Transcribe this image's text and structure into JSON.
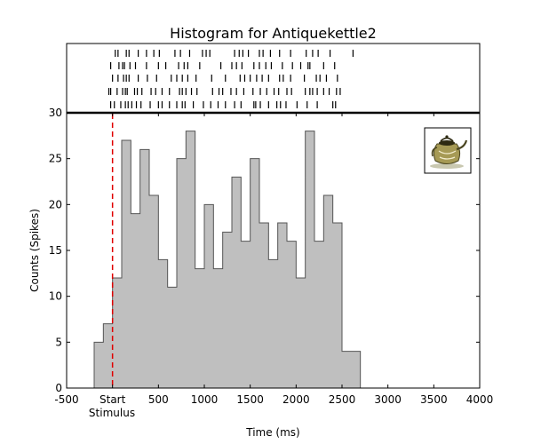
{
  "chart_data": {
    "type": "bar",
    "title": "Histogram for Antiquekettle2",
    "xlabel": "Time (ms)",
    "ylabel": "Counts (Spikes)",
    "xlim": [
      -500,
      4000
    ],
    "ylim": [
      0,
      30
    ],
    "bin_width": 100,
    "x_ticks": [
      -500,
      0,
      500,
      1000,
      1500,
      2000,
      2500,
      3000,
      3500,
      4000
    ],
    "x_tick_labels": [
      "-500",
      "Start",
      "500",
      "1000",
      "1500",
      "2000",
      "2500",
      "3000",
      "3500",
      "4000"
    ],
    "stimulus_label": "Stimulus",
    "stimulus_x": 0,
    "y_ticks": [
      0,
      5,
      10,
      15,
      20,
      25,
      30
    ],
    "bins": {
      "x": [
        -200,
        -100,
        0,
        100,
        200,
        300,
        400,
        500,
        600,
        700,
        800,
        900,
        1000,
        1100,
        1200,
        1300,
        1400,
        1500,
        1600,
        1700,
        1800,
        1900,
        2000,
        2100,
        2200,
        2300,
        2400,
        2500,
        2600
      ],
      "values": [
        5,
        7,
        12,
        27,
        19,
        26,
        21,
        14,
        11,
        25,
        28,
        13,
        20,
        13,
        17,
        23,
        16,
        25,
        18,
        14,
        18,
        16,
        12,
        28,
        16,
        21,
        18,
        4,
        4
      ]
    },
    "bar_color": "#bfbfbf",
    "bar_edge_color": "#555555",
    "stimulus_line_color": "#e00000",
    "raster": {
      "trials": [
        [
          30,
          60,
          150,
          180,
          280,
          370,
          450,
          510,
          680,
          740,
          840,
          980,
          1020,
          1060,
          1330,
          1380,
          1420,
          1480,
          1600,
          1640,
          1720,
          1820,
          1940,
          2110,
          2180,
          2240,
          2370,
          2620
        ],
        [
          -20,
          70,
          110,
          130,
          190,
          250,
          370,
          500,
          580,
          720,
          780,
          820,
          950,
          1180,
          1300,
          1350,
          1410,
          1540,
          1600,
          1670,
          1730,
          1850,
          1960,
          2050,
          2130,
          2150,
          2300,
          2420
        ],
        [
          0,
          60,
          120,
          150,
          180,
          280,
          380,
          480,
          640,
          700,
          760,
          820,
          910,
          1080,
          1230,
          1390,
          1440,
          1500,
          1570,
          1630,
          1700,
          1820,
          1860,
          1940,
          2090,
          2220,
          2260,
          2330,
          2450
        ],
        [
          -40,
          -20,
          50,
          110,
          140,
          160,
          240,
          270,
          320,
          420,
          470,
          540,
          620,
          730,
          760,
          800,
          860,
          920,
          1090,
          1160,
          1200,
          1290,
          1350,
          1430,
          1530,
          1610,
          1680,
          1760,
          1810,
          1900,
          1950,
          2100,
          2150,
          2180,
          2230,
          2300,
          2360,
          2440,
          2480
        ],
        [
          -20,
          20,
          90,
          140,
          170,
          210,
          260,
          310,
          410,
          500,
          540,
          620,
          700,
          760,
          790,
          880,
          990,
          1070,
          1150,
          1230,
          1330,
          1400,
          1540,
          1560,
          1610,
          1700,
          1790,
          1830,
          1890,
          2010,
          2120,
          2230,
          2400,
          2430
        ]
      ]
    }
  }
}
